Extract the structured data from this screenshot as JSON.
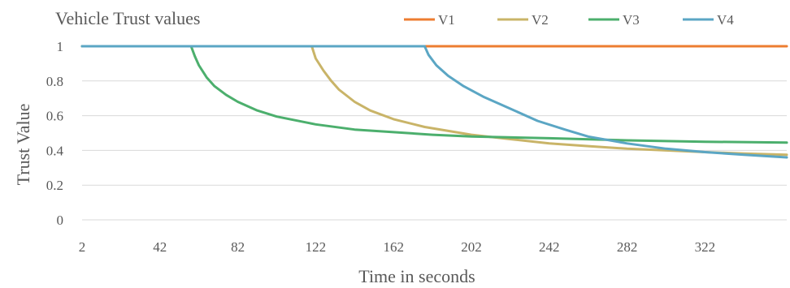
{
  "chart_data": {
    "type": "line",
    "title": "Vehicle Trust values",
    "xlabel": "Time in seconds",
    "ylabel": "Trust Value",
    "xlim": [
      2,
      364
    ],
    "ylim": [
      0,
      1
    ],
    "x_ticks": [
      2,
      42,
      82,
      122,
      162,
      202,
      242,
      282,
      322
    ],
    "y_ticks": [
      0,
      0.2,
      0.4,
      0.6,
      0.8,
      1
    ],
    "y_tick_labels": [
      "0",
      "0.2",
      "0.4",
      "0.6",
      "0.8",
      "1"
    ],
    "grid": "horizontal",
    "legend_position": "top-right",
    "series": [
      {
        "name": "V1",
        "color": "#ED7D31",
        "points": [
          [
            2,
            1
          ],
          [
            364,
            1
          ]
        ]
      },
      {
        "name": "V2",
        "color": "#C9B468",
        "points": [
          [
            2,
            1
          ],
          [
            120,
            1
          ],
          [
            122,
            0.93
          ],
          [
            126,
            0.86
          ],
          [
            130,
            0.8
          ],
          [
            134,
            0.75
          ],
          [
            142,
            0.68
          ],
          [
            150,
            0.63
          ],
          [
            162,
            0.58
          ],
          [
            178,
            0.535
          ],
          [
            202,
            0.49
          ],
          [
            222,
            0.465
          ],
          [
            242,
            0.44
          ],
          [
            262,
            0.425
          ],
          [
            282,
            0.41
          ],
          [
            302,
            0.4
          ],
          [
            322,
            0.39
          ],
          [
            342,
            0.382
          ],
          [
            364,
            0.375
          ]
        ]
      },
      {
        "name": "V3",
        "color": "#4CAF6D",
        "points": [
          [
            2,
            1
          ],
          [
            58,
            1
          ],
          [
            60,
            0.94
          ],
          [
            62,
            0.89
          ],
          [
            66,
            0.82
          ],
          [
            70,
            0.77
          ],
          [
            76,
            0.72
          ],
          [
            82,
            0.68
          ],
          [
            92,
            0.63
          ],
          [
            102,
            0.595
          ],
          [
            122,
            0.55
          ],
          [
            142,
            0.52
          ],
          [
            162,
            0.505
          ],
          [
            182,
            0.49
          ],
          [
            202,
            0.48
          ],
          [
            242,
            0.47
          ],
          [
            282,
            0.458
          ],
          [
            322,
            0.45
          ],
          [
            364,
            0.445
          ]
        ]
      },
      {
        "name": "V4",
        "color": "#5BA6C4",
        "points": [
          [
            2,
            1
          ],
          [
            178,
            1
          ],
          [
            180,
            0.95
          ],
          [
            184,
            0.89
          ],
          [
            190,
            0.83
          ],
          [
            198,
            0.77
          ],
          [
            208,
            0.71
          ],
          [
            222,
            0.64
          ],
          [
            236,
            0.57
          ],
          [
            250,
            0.52
          ],
          [
            262,
            0.48
          ],
          [
            282,
            0.44
          ],
          [
            302,
            0.41
          ],
          [
            322,
            0.39
          ],
          [
            342,
            0.375
          ],
          [
            364,
            0.36
          ]
        ]
      }
    ]
  }
}
